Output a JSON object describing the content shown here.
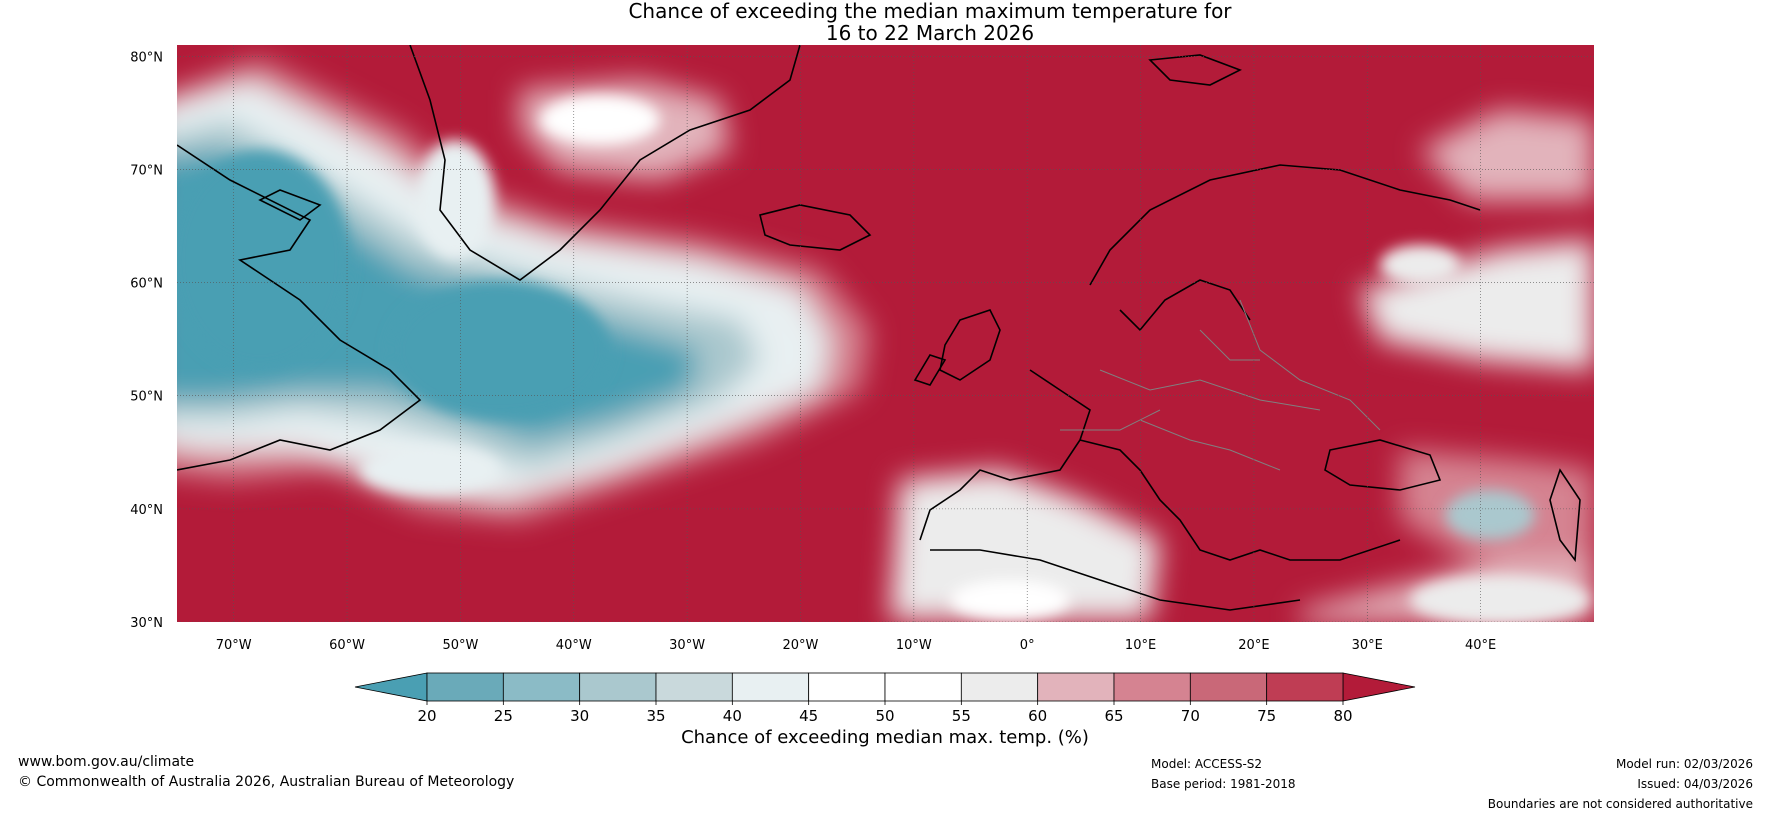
{
  "title": {
    "line1": "Chance of exceeding the median maximum temperature for",
    "line2": "16 to 22 March 2026"
  },
  "map": {
    "region": "North Atlantic and Europe",
    "lat_labels": [
      "80°N",
      "70°N",
      "60°N",
      "50°N",
      "40°N",
      "30°N"
    ],
    "lat_values": [
      80,
      70,
      60,
      50,
      40,
      30
    ],
    "lon_labels": [
      "70°W",
      "60°W",
      "50°W",
      "40°W",
      "30°W",
      "20°W",
      "10°W",
      "0°",
      "10°E",
      "20°E",
      "30°E",
      "40°E"
    ],
    "lon_values": [
      -70,
      -60,
      -50,
      -40,
      -30,
      -20,
      -10,
      0,
      10,
      20,
      30,
      40
    ],
    "lon_range": [
      -75,
      50
    ],
    "lat_range": [
      30,
      81
    ]
  },
  "colorbar": {
    "ticks": [
      "20",
      "25",
      "30",
      "35",
      "40",
      "45",
      "50",
      "55",
      "60",
      "65",
      "70",
      "75",
      "80"
    ],
    "colors": [
      "#4a9fb3",
      "#6aaab9",
      "#8bbbc6",
      "#aac8ce",
      "#c9d9dc",
      "#e8f0f2",
      "#ffffff",
      "#ffffff",
      "#ececec",
      "#e2b3bb",
      "#d58391",
      "#c96878",
      "#bf3d54"
    ],
    "low_color": "#4a9fb3",
    "high_color": "#b31b39",
    "label": "Chance of exceeding median max. temp. (%)"
  },
  "colors": {
    "below": "#4a9fb3",
    "above": "#b31b39",
    "neutral": "#ffffff",
    "coast": "#000000",
    "border": "#808080"
  },
  "footer": {
    "website": "www.bom.gov.au/climate",
    "copyright": "© Commonwealth of Australia 2026, Australian Bureau of Meteorology",
    "model": "Model: ACCESS-S2",
    "base_period": "Base period: 1981-2018",
    "model_run": "Model run: 02/03/2026",
    "issued": "Issued: 04/03/2026",
    "disclaimer": "Boundaries are not considered authoritative"
  }
}
